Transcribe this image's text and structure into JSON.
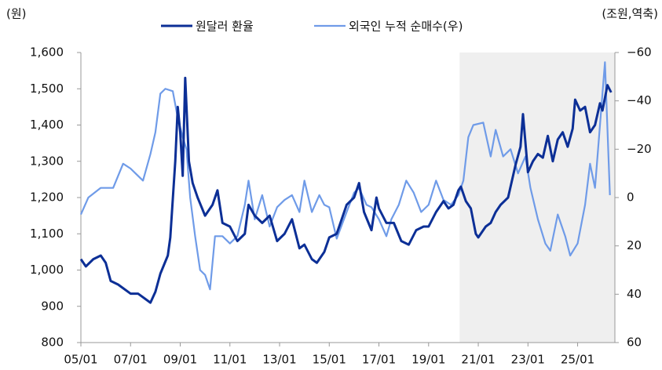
{
  "chart_data": {
    "type": "line",
    "y_label": "(원)",
    "y2_label": "(조원,역축)",
    "xlim": [
      5,
      26.5
    ],
    "xticks": [
      {
        "value": 5,
        "label": "05/01"
      },
      {
        "value": 7,
        "label": "07/01"
      },
      {
        "value": 9,
        "label": "09/01"
      },
      {
        "value": 11,
        "label": "11/01"
      },
      {
        "value": 13,
        "label": "13/01"
      },
      {
        "value": 15,
        "label": "15/01"
      },
      {
        "value": 17,
        "label": "17/01"
      },
      {
        "value": 19,
        "label": "19/01"
      },
      {
        "value": 21,
        "label": "21/01"
      },
      {
        "value": 23,
        "label": "23/01"
      },
      {
        "value": 25,
        "label": "25/01"
      }
    ],
    "ylim": [
      800,
      1600
    ],
    "yticks": [
      800,
      900,
      {
        "value": 1000,
        "label": "1,000"
      },
      {
        "value": 1100,
        "label": "1,100"
      },
      {
        "value": 1200,
        "label": "1,200"
      },
      {
        "value": 1300,
        "label": "1,300"
      },
      {
        "value": 1400,
        "label": "1,400"
      },
      {
        "value": 1500,
        "label": "1,500"
      },
      {
        "value": 1600,
        "label": "1,600"
      }
    ],
    "y2lim": [
      60,
      -60
    ],
    "y2ticks": [
      {
        "value": -60,
        "label": "−60"
      },
      {
        "value": -40,
        "label": "−40"
      },
      {
        "value": -20,
        "label": "−20"
      },
      0,
      20,
      40,
      60
    ],
    "highlight_x": [
      20.25,
      26.5
    ],
    "legend": "top",
    "series": [
      {
        "name": "원달러 환율",
        "color": "#0c2f96",
        "x": [
          5.0,
          5.2,
          5.5,
          5.8,
          6.0,
          6.2,
          6.5,
          6.7,
          7.0,
          7.3,
          7.6,
          7.8,
          8.0,
          8.2,
          8.5,
          8.6,
          8.8,
          8.9,
          9.0,
          9.1,
          9.2,
          9.35,
          9.5,
          9.7,
          10.0,
          10.3,
          10.5,
          10.7,
          11.0,
          11.3,
          11.6,
          11.75,
          12.0,
          12.3,
          12.6,
          12.9,
          13.2,
          13.5,
          13.8,
          14.0,
          14.3,
          14.5,
          14.8,
          15.0,
          15.3,
          15.5,
          15.7,
          16.0,
          16.2,
          16.4,
          16.7,
          16.9,
          17.0,
          17.3,
          17.6,
          17.9,
          18.2,
          18.5,
          18.8,
          19.0,
          19.3,
          19.6,
          19.8,
          20.0,
          20.2,
          20.3,
          20.5,
          20.7,
          20.9,
          21.0,
          21.3,
          21.5,
          21.7,
          21.9,
          22.2,
          22.5,
          22.7,
          22.8,
          23.0,
          23.2,
          23.4,
          23.6,
          23.8,
          24.0,
          24.2,
          24.4,
          24.6,
          24.8,
          24.9,
          25.1,
          25.3,
          25.5,
          25.7,
          25.9,
          26.0,
          26.2,
          26.35
        ],
        "values": [
          1030,
          1010,
          1030,
          1040,
          1020,
          970,
          960,
          950,
          935,
          935,
          920,
          910,
          940,
          990,
          1040,
          1090,
          1300,
          1450,
          1380,
          1260,
          1530,
          1300,
          1240,
          1200,
          1150,
          1180,
          1220,
          1130,
          1120,
          1080,
          1100,
          1180,
          1150,
          1130,
          1150,
          1080,
          1100,
          1140,
          1060,
          1070,
          1030,
          1020,
          1050,
          1090,
          1100,
          1140,
          1180,
          1200,
          1240,
          1160,
          1110,
          1200,
          1170,
          1130,
          1130,
          1080,
          1070,
          1110,
          1120,
          1120,
          1160,
          1190,
          1170,
          1180,
          1220,
          1230,
          1190,
          1170,
          1100,
          1090,
          1120,
          1130,
          1160,
          1180,
          1200,
          1290,
          1340,
          1430,
          1270,
          1300,
          1320,
          1310,
          1370,
          1300,
          1360,
          1380,
          1340,
          1390,
          1470,
          1440,
          1450,
          1380,
          1400,
          1460,
          1440,
          1510,
          1490
        ]
      },
      {
        "name": "외국인 누적 순매수(우)",
        "color": "#6f9be8",
        "axis": "y2",
        "x": [
          5.0,
          5.3,
          5.8,
          6.3,
          6.7,
          7.0,
          7.2,
          7.5,
          7.8,
          8.0,
          8.2,
          8.4,
          8.7,
          8.9,
          9.1,
          9.25,
          9.4,
          9.6,
          9.8,
          10.0,
          10.2,
          10.4,
          10.7,
          11.0,
          11.3,
          11.6,
          11.75,
          12.0,
          12.3,
          12.6,
          12.9,
          13.2,
          13.5,
          13.8,
          14.0,
          14.3,
          14.6,
          14.8,
          15.0,
          15.3,
          15.7,
          16.0,
          16.2,
          16.5,
          16.7,
          17.0,
          17.3,
          17.5,
          17.8,
          18.1,
          18.4,
          18.7,
          19.0,
          19.3,
          19.6,
          19.9,
          20.2,
          20.4,
          20.6,
          20.8,
          21.2,
          21.5,
          21.7,
          22.0,
          22.3,
          22.6,
          22.9,
          23.1,
          23.4,
          23.7,
          23.9,
          24.2,
          24.5,
          24.7,
          25.0,
          25.3,
          25.5,
          25.7,
          25.9,
          26.1,
          26.3
        ],
        "values": [
          7,
          0,
          -4,
          -4,
          -14,
          -12,
          -10,
          -7,
          -18,
          -27,
          -43,
          -45,
          -44,
          -33,
          -25,
          -20,
          0,
          16,
          30,
          32,
          38,
          16,
          16,
          19,
          16,
          3,
          -7,
          9,
          -1,
          12,
          4,
          1,
          -1,
          6,
          -7,
          6,
          -1,
          3,
          4,
          17,
          6,
          -2,
          -4,
          3,
          4,
          9,
          16,
          9,
          3,
          -7,
          -2,
          6,
          3,
          -7,
          1,
          3,
          -1,
          -7,
          -25,
          -30,
          -31,
          -17,
          -28,
          -17,
          -20,
          -10,
          -17,
          -4,
          9,
          19,
          22,
          7,
          16,
          24,
          19,
          3,
          -14,
          -4,
          -30,
          -56,
          -1
        ]
      }
    ]
  }
}
